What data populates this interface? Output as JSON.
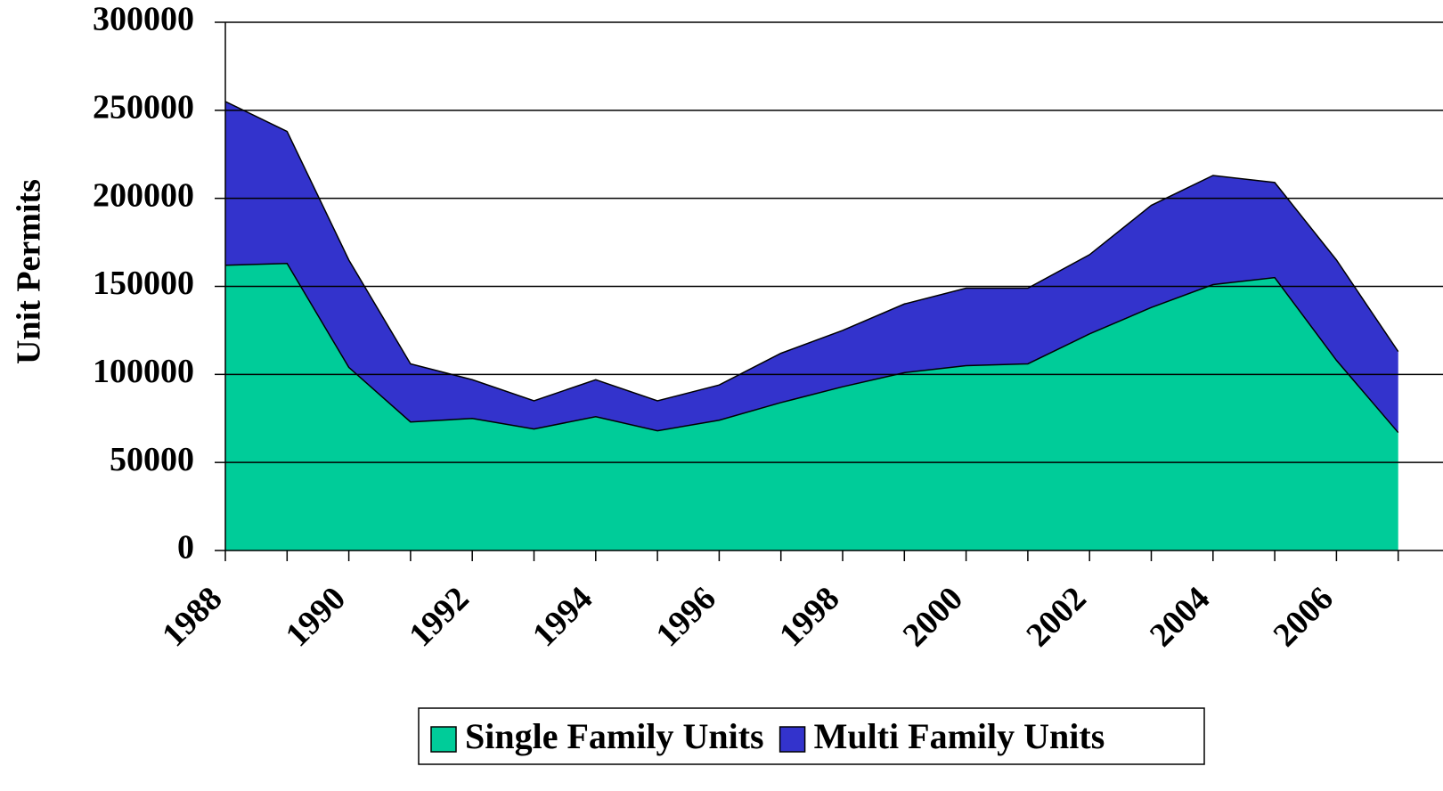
{
  "chart_data": {
    "type": "stacked_area",
    "y_label": "Unit Permits",
    "categories": [
      "1988",
      null,
      "1990",
      null,
      "1992",
      null,
      "1994",
      null,
      "1996",
      null,
      "1998",
      null,
      "2000",
      null,
      "2002",
      null,
      "2004",
      null,
      "2006",
      null
    ],
    "series": [
      {
        "name": "Single Family Units",
        "color": "#00cc99",
        "values": [
          162000,
          163000,
          104000,
          73000,
          75000,
          69000,
          76000,
          68000,
          74000,
          84000,
          93000,
          101000,
          105000,
          106000,
          123000,
          138000,
          151000,
          155000,
          108000,
          67000
        ]
      },
      {
        "name": "Multi Family Units",
        "color": "#3333cc",
        "values": [
          93000,
          75000,
          61000,
          33000,
          22000,
          16000,
          21000,
          17000,
          20000,
          28000,
          32000,
          39000,
          44000,
          43000,
          45000,
          58000,
          62000,
          54000,
          57000,
          46000
        ]
      }
    ],
    "ylim": [
      0,
      300000
    ],
    "yticks": [
      0,
      50000,
      100000,
      150000,
      200000,
      250000,
      300000
    ],
    "grid": true,
    "legend": "bottom"
  }
}
